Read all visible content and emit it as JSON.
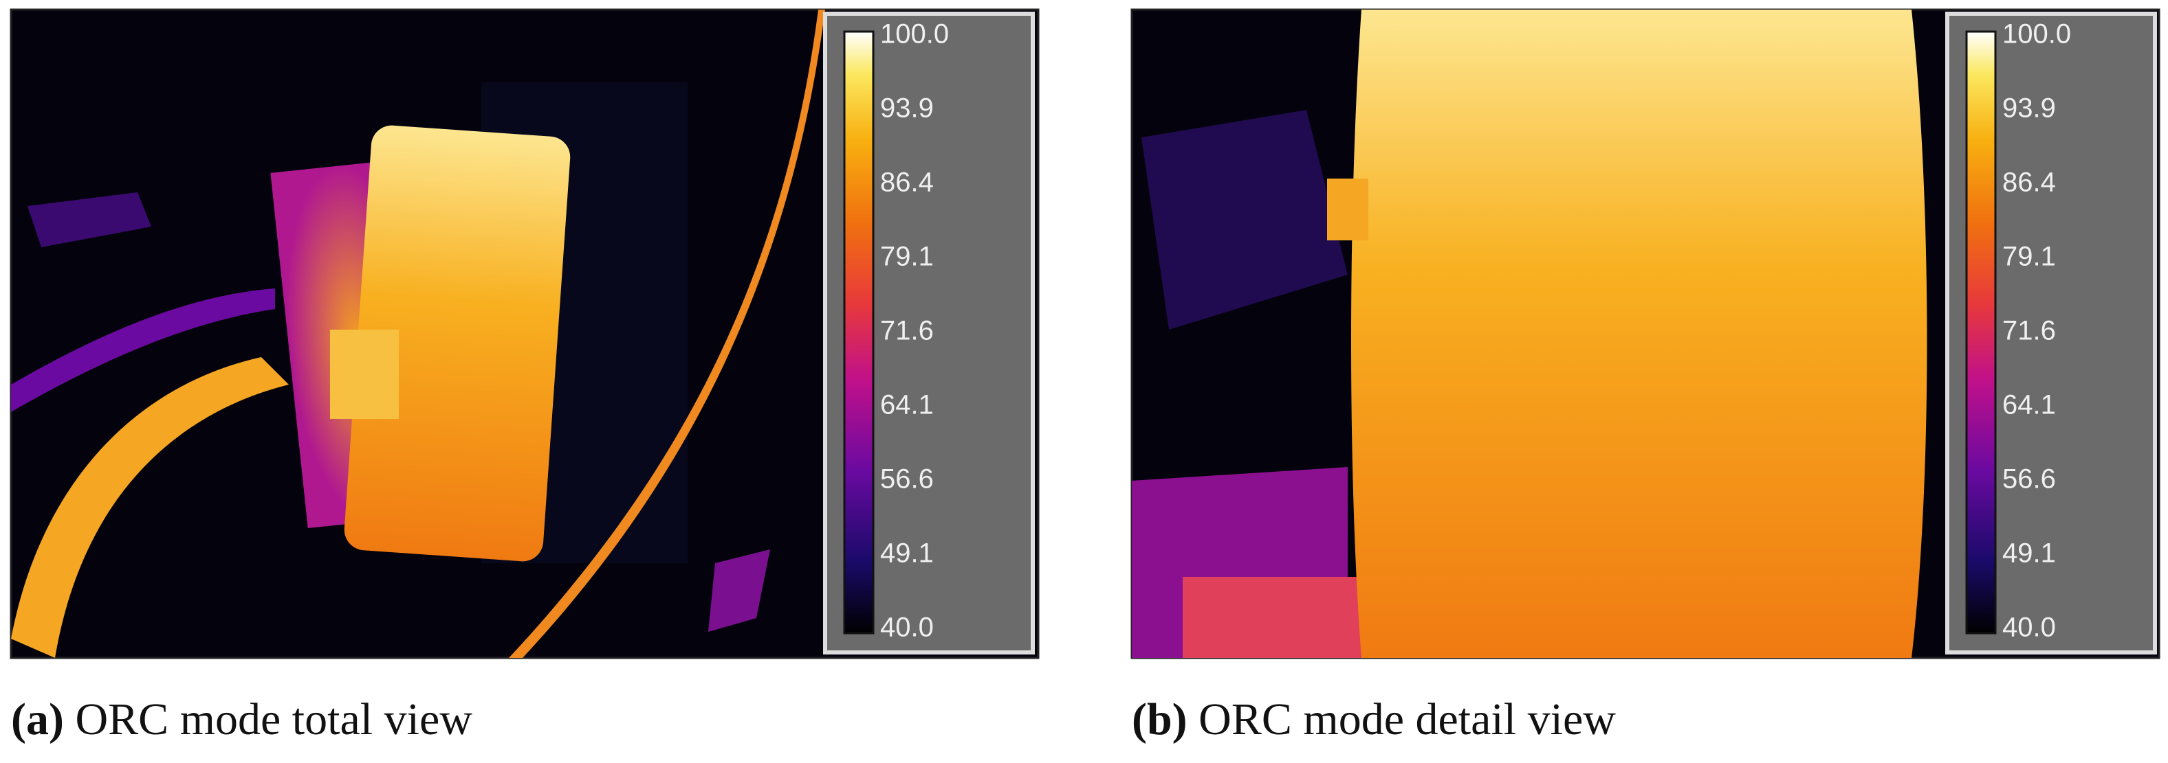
{
  "panels": [
    {
      "label": "(a)",
      "caption": "ORC mode total view",
      "colorbar": [
        "100.0",
        "93.9",
        "86.4",
        "79.1",
        "71.6",
        "64.1",
        "56.6",
        "49.1",
        "40.0"
      ]
    },
    {
      "label": "(b)",
      "caption": "ORC mode detail view",
      "colorbar": [
        "100.0",
        "93.9",
        "86.4",
        "79.1",
        "71.6",
        "64.1",
        "56.6",
        "49.1",
        "40.0"
      ]
    }
  ]
}
